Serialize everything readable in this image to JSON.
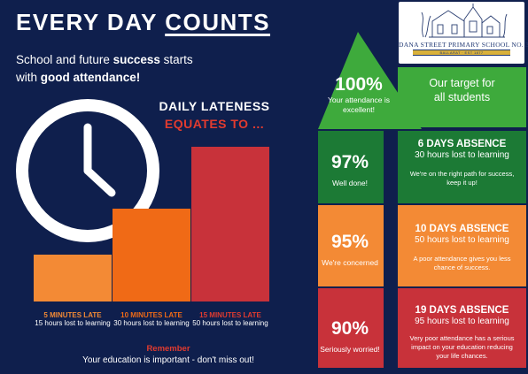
{
  "header": {
    "title_part1": "EVERY DAY ",
    "title_part2": "COUNTS",
    "subtitle_1": "School and future ",
    "subtitle_bold_1": "success",
    "subtitle_2": " starts",
    "subtitle_3": "with ",
    "subtitle_bold_2": "good attendance!"
  },
  "logo": {
    "school_name": "DANA STREET PRIMARY SCHOOL NO. 33",
    "motto": "BALLARAT · EST 1877"
  },
  "lateness": {
    "title": "DAILY LATENESS",
    "subtitle": "EQUATES TO ...",
    "bars": [
      {
        "heading": "5 MINUTES LATE",
        "detail": "15 hours lost to learning",
        "value": 15,
        "color": "#f38a35"
      },
      {
        "heading": "10 MINUTES LATE",
        "detail": "30 hours lost to learning",
        "value": 30,
        "color": "#f06a16"
      },
      {
        "heading": "15 MINUTES LATE",
        "detail": "50 hours lost to learning",
        "value": 50,
        "color": "#c8323a"
      }
    ],
    "remember": "Remember",
    "footer": "Your education is important - don't miss out!"
  },
  "tiers": [
    {
      "pct": "100%",
      "caption": "Your attendance is excellent!",
      "color": "#3eaa3c"
    },
    {
      "pct": "97%",
      "caption": "Well done!",
      "color": "#1c7a35"
    },
    {
      "pct": "95%",
      "caption": "We're concerned",
      "color": "#f38a35"
    },
    {
      "pct": "90%",
      "caption": "Seriously worried!",
      "color": "#c8323a"
    }
  ],
  "info": [
    {
      "title": "Our target for all students",
      "color": "#3eaa3c"
    },
    {
      "title": "6 DAYS ABSENCE",
      "sub": "30 hours lost to learning",
      "desc": "We're on the right path for success, keep it up!",
      "color": "#1c7a35"
    },
    {
      "title": "10 DAYS ABSENCE",
      "sub": "50 hours lost to learning",
      "desc": "A poor attendance gives you less chance of success.",
      "color": "#f38a35"
    },
    {
      "title": "19 DAYS ABSENCE",
      "sub": "95 hours lost to learning",
      "desc": "Very poor attendance has a serious impact on your education reducing your life chances.",
      "color": "#c8323a"
    }
  ]
}
